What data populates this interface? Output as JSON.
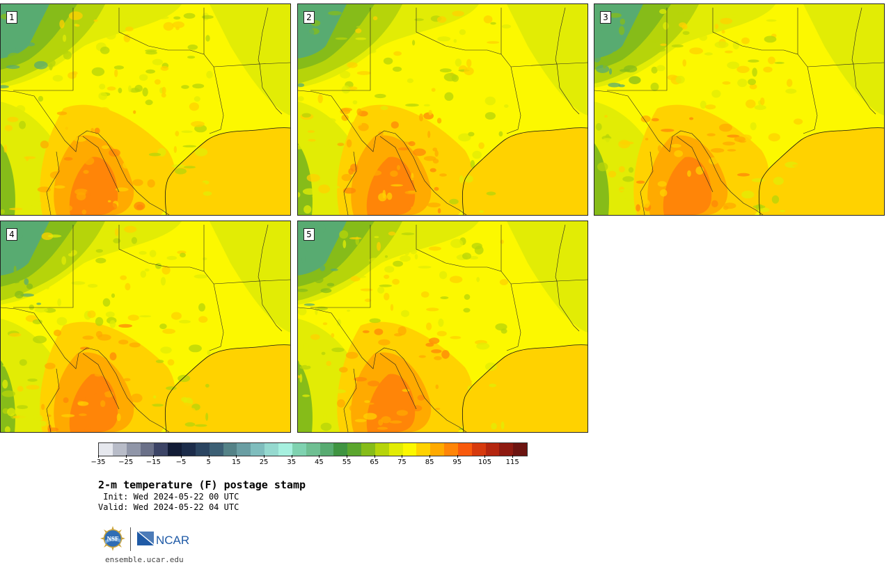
{
  "panels": [
    {
      "label": "1",
      "seed": 11
    },
    {
      "label": "2",
      "seed": 23
    },
    {
      "label": "3",
      "seed": 37
    },
    {
      "label": "4",
      "seed": 41
    },
    {
      "label": "5",
      "seed": 59
    }
  ],
  "colorbar": {
    "colors": [
      "#e6e8ee",
      "#b8bcc8",
      "#9096a8",
      "#6a7088",
      "#3c4466",
      "#121c36",
      "#1c2c4a",
      "#2a4460",
      "#3c5f74",
      "#548287",
      "#6a9ea3",
      "#7fbdbd",
      "#95d9cf",
      "#a6f0df",
      "#7fd2b0",
      "#6fbf92",
      "#58ab71",
      "#3f9441",
      "#5ba62e",
      "#86bc19",
      "#b6d40a",
      "#e2ec05",
      "#fcf800",
      "#ffd200",
      "#ffaa00",
      "#ff8508",
      "#f85a0d",
      "#d63a0e",
      "#b4260f",
      "#8e1a10",
      "#6c1410"
    ],
    "ticks": [
      "−35",
      "−25",
      "−15",
      "−5",
      "5",
      "15",
      "25",
      "35",
      "45",
      "55",
      "65",
      "75",
      "85",
      "95",
      "105",
      "115"
    ]
  },
  "title": "2-m temperature (F) postage stamp",
  "init": " Init: Wed 2024-05-22 00 UTC",
  "valid": "Valid: Wed 2024-05-22 04 UTC",
  "logos": {
    "nsf": "NSF",
    "ncar": "NCAR"
  },
  "footer": "ensemble.ucar.edu"
}
